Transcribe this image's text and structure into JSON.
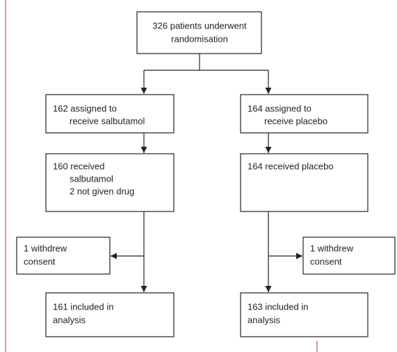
{
  "nodes": [
    {
      "lines": [
        "326 patients underwent",
        "randomisation"
      ]
    },
    {
      "lines": [
        "162 assigned to",
        "receive salbutamol"
      ]
    },
    {
      "lines": [
        "164 assigned to",
        "receive placebo"
      ]
    },
    {
      "lines": [
        "160 received",
        "salbutamol",
        "2 not given drug"
      ]
    },
    {
      "lines": [
        "164 received placebo"
      ]
    },
    {
      "lines": [
        "1 withdrew",
        "consent"
      ]
    },
    {
      "lines": [
        "1 withdrew",
        "consent"
      ]
    },
    {
      "lines": [
        "161 included in",
        "analysis"
      ]
    },
    {
      "lines": [
        "163 included in",
        "analysis"
      ]
    }
  ]
}
